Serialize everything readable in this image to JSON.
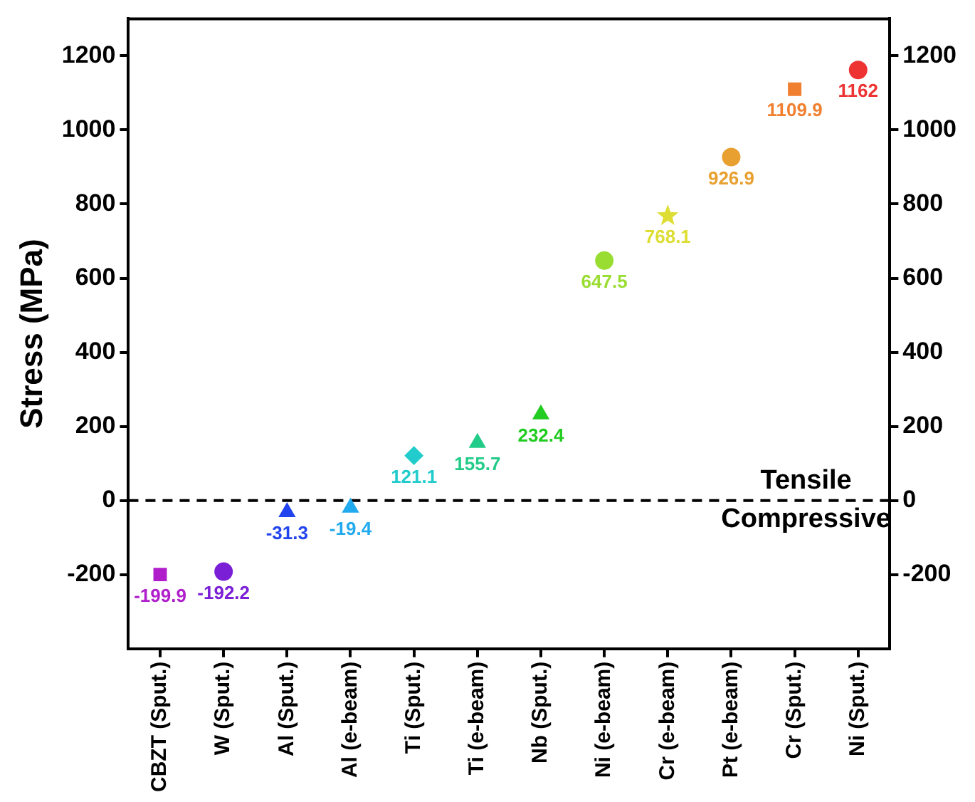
{
  "chart_data": {
    "type": "scatter",
    "ylabel": "Stress (MPa)",
    "categories": [
      "CBZT (Sput.)",
      "W (Sput.)",
      "Al (Sput.)",
      "Al (e-beam)",
      "Ti (Sput.)",
      "Ti (e-beam)",
      "Nb (Sput.)",
      "Ni (e-beam)",
      "Cr (e-beam)",
      "Pt (e-beam)",
      "Cr (Sput.)",
      "Ni (Sput.)"
    ],
    "series": [
      {
        "color": "#b01ecc",
        "marker": "square",
        "values": [
          -199.9,
          null,
          null,
          null,
          null,
          null,
          null,
          null,
          null,
          null,
          null,
          null
        ]
      },
      {
        "color": "#7a1fd6",
        "marker": "circle",
        "values": [
          null,
          -192.2,
          null,
          null,
          null,
          null,
          null,
          null,
          null,
          null,
          null,
          null
        ]
      },
      {
        "color": "#2244ee",
        "marker": "triangle",
        "values": [
          null,
          null,
          -31.3,
          null,
          null,
          null,
          null,
          null,
          null,
          null,
          null,
          null
        ]
      },
      {
        "color": "#22aaee",
        "marker": "triangle",
        "values": [
          null,
          null,
          null,
          -19.4,
          null,
          null,
          null,
          null,
          null,
          null,
          null,
          null
        ]
      },
      {
        "color": "#22cccc",
        "marker": "diamond",
        "values": [
          null,
          null,
          null,
          null,
          121.1,
          null,
          null,
          null,
          null,
          null,
          null,
          null
        ]
      },
      {
        "color": "#22cc88",
        "marker": "triangle",
        "values": [
          null,
          null,
          null,
          null,
          null,
          155.7,
          null,
          null,
          null,
          null,
          null,
          null
        ]
      },
      {
        "color": "#22cc22",
        "marker": "triangle",
        "values": [
          null,
          null,
          null,
          null,
          null,
          null,
          232.4,
          null,
          null,
          null,
          null,
          null
        ]
      },
      {
        "color": "#99dd33",
        "marker": "circle",
        "values": [
          null,
          null,
          null,
          null,
          null,
          null,
          null,
          647.5,
          null,
          null,
          null,
          null
        ]
      },
      {
        "color": "#dddd33",
        "marker": "star",
        "values": [
          null,
          null,
          null,
          null,
          null,
          null,
          null,
          null,
          768.1,
          null,
          null,
          null
        ]
      },
      {
        "color": "#e8a030",
        "marker": "circle",
        "values": [
          null,
          null,
          null,
          null,
          null,
          null,
          null,
          null,
          null,
          926.9,
          null,
          null
        ]
      },
      {
        "color": "#f08030",
        "marker": "square",
        "values": [
          null,
          null,
          null,
          null,
          null,
          null,
          null,
          null,
          null,
          null,
          1109.9,
          null
        ]
      },
      {
        "color": "#ee3333",
        "marker": "circle",
        "values": [
          null,
          null,
          null,
          null,
          null,
          null,
          null,
          null,
          null,
          null,
          null,
          1162
        ]
      }
    ],
    "ylim": [
      -400,
      1300
    ],
    "yticks": [
      -200,
      0,
      200,
      400,
      600,
      800,
      1000,
      1200
    ],
    "y2lim": [
      -400,
      1300
    ],
    "y2ticks": [
      -200,
      0,
      200,
      400,
      600,
      800,
      1000,
      1200
    ],
    "ref_lines": [
      {
        "axis": "y",
        "value": 0,
        "line_style": "dashed",
        "color": "#000000"
      }
    ],
    "annotations": [
      {
        "text": "Tensile",
        "x": "Cr (Sput.)",
        "y": 0
      },
      {
        "text": "Compressive",
        "x": "Cr (Sput.)",
        "y": 0
      }
    ],
    "data_labels": true,
    "grid": false,
    "legend": false
  }
}
